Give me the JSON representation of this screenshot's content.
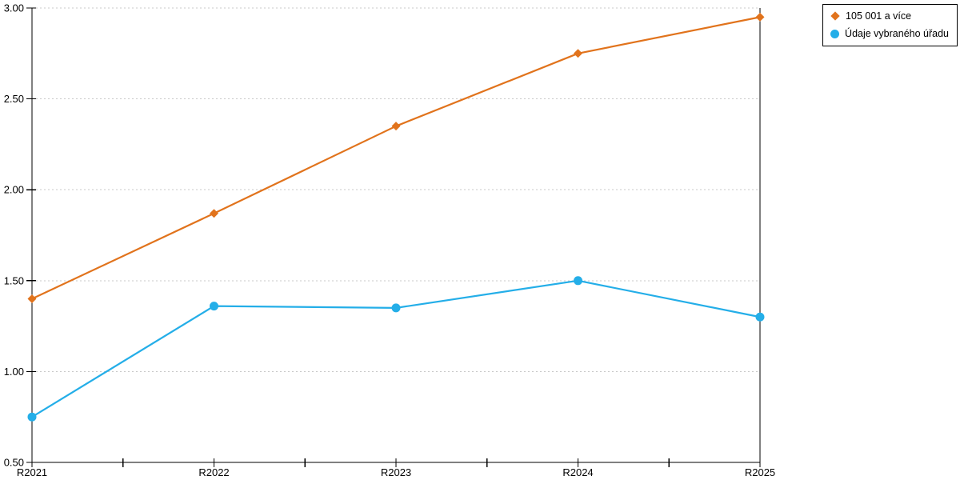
{
  "chart_data": {
    "type": "line",
    "categories": [
      "R2021",
      "R2022",
      "R2023",
      "R2024",
      "R2025"
    ],
    "series": [
      {
        "name": "105 001 a více",
        "marker": "diamond",
        "color": "#e1731c",
        "values": [
          1.4,
          1.87,
          2.35,
          2.75,
          2.95
        ]
      },
      {
        "name": "Údaje vybraného úřadu",
        "marker": "circle",
        "color": "#24aee8",
        "values": [
          0.75,
          1.36,
          1.35,
          1.5,
          1.3
        ]
      }
    ],
    "title": "",
    "xlabel": "",
    "ylabel": "",
    "ylim": [
      0.5,
      3.0
    ],
    "ytick_step": 0.5,
    "ytick_labels": [
      "0.50",
      "1.00",
      "1.50",
      "2.00",
      "2.50",
      "3.00"
    ],
    "x_minor_ticks_between_categories": true,
    "grid": "horizontal-dotted",
    "grid_color": "#c9c9c9",
    "axis_color": "#000000",
    "legend_position": "top-right"
  }
}
